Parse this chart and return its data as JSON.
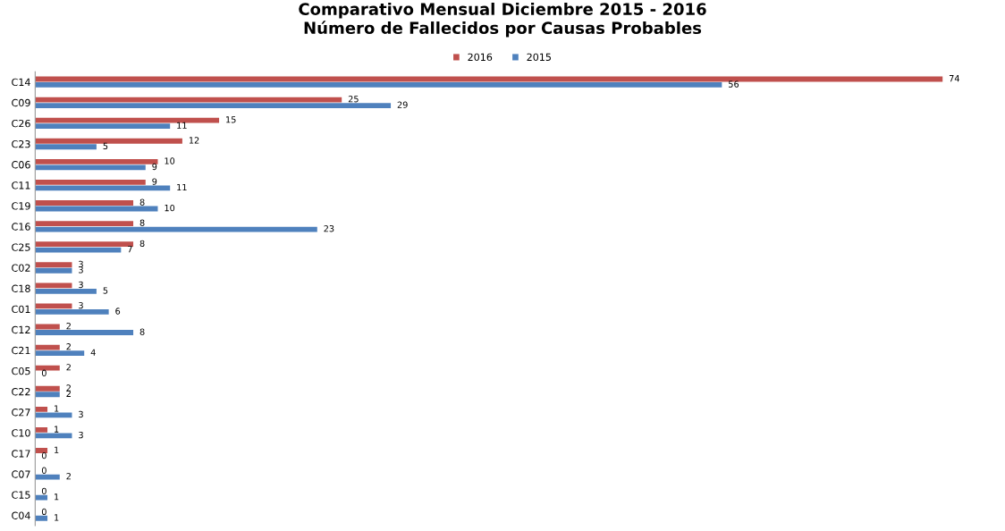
{
  "chart_data": {
    "type": "bar",
    "orientation": "horizontal",
    "title": "Comparativo Mensual Diciembre 2015 - 2016\nNúmero de Fallecidos por Causas Probables",
    "categories": [
      "C14",
      "C09",
      "C26",
      "C23",
      "C06",
      "C11",
      "C19",
      "C16",
      "C25",
      "C02",
      "C18",
      "C01",
      "C12",
      "C21",
      "C05",
      "C22",
      "C27",
      "C10",
      "C17",
      "C07",
      "C15",
      "C04"
    ],
    "series": [
      {
        "name": "2016",
        "color": "#c0504d",
        "values": [
          74,
          25,
          15,
          12,
          10,
          9,
          8,
          8,
          8,
          3,
          3,
          3,
          2,
          2,
          2,
          2,
          1,
          1,
          1,
          0,
          0,
          0
        ]
      },
      {
        "name": "2015",
        "color": "#4f81bd",
        "values": [
          56,
          29,
          11,
          5,
          9,
          11,
          10,
          23,
          7,
          3,
          5,
          6,
          8,
          4,
          0,
          2,
          3,
          3,
          0,
          2,
          1,
          1
        ]
      }
    ],
    "data_labels": true,
    "legend": "top",
    "grid": false
  }
}
